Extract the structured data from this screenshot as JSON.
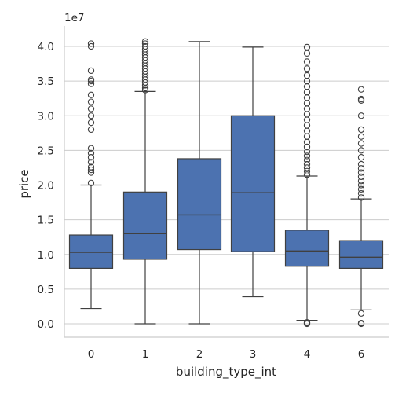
{
  "chart_data": {
    "type": "box",
    "xlabel": "building_type_int",
    "ylabel": "price",
    "y_scale_label": "1e7",
    "y_ticks": [
      "0.0",
      "0.5",
      "1.0",
      "1.5",
      "2.0",
      "2.5",
      "3.0",
      "3.5",
      "4.0"
    ],
    "y_tick_values": [
      0,
      0.5,
      1.0,
      1.5,
      2.0,
      2.5,
      3.0,
      3.5,
      4.0
    ],
    "ylim": [
      -0.2,
      4.3
    ],
    "grid": "horizontal",
    "box_color": "#4c72b0",
    "line_color": "#404040",
    "categories": [
      "0",
      "1",
      "2",
      "3",
      "4",
      "6"
    ],
    "boxes": [
      {
        "category": "0",
        "whislo": 0.22,
        "q1": 0.8,
        "median": 1.03,
        "q3": 1.28,
        "whishi": 2.0,
        "fliers": [
          2.03,
          2.18,
          2.22,
          2.26,
          2.33,
          2.4,
          2.46,
          2.53,
          2.8,
          2.9,
          3.0,
          3.1,
          3.2,
          3.3,
          3.46,
          3.5,
          3.52,
          3.65,
          4.0,
          4.04
        ]
      },
      {
        "category": "1",
        "whislo": 0.0,
        "q1": 0.93,
        "median": 1.3,
        "q3": 1.9,
        "whishi": 3.35,
        "fliers": [
          3.37,
          3.4,
          3.44,
          3.48,
          3.52,
          3.56,
          3.6,
          3.64,
          3.68,
          3.72,
          3.76,
          3.8,
          3.84,
          3.88,
          3.92,
          3.96,
          4.0,
          4.04,
          4.07
        ]
      },
      {
        "category": "2",
        "whislo": 0.0,
        "q1": 1.07,
        "median": 1.57,
        "q3": 2.38,
        "whishi": 4.07,
        "fliers": []
      },
      {
        "category": "3",
        "whislo": 0.39,
        "q1": 1.04,
        "median": 1.89,
        "q3": 3.0,
        "whishi": 3.99,
        "fliers": []
      },
      {
        "category": "4",
        "whislo": 0.05,
        "q1": 0.83,
        "median": 1.05,
        "q3": 1.35,
        "whishi": 2.13,
        "fliers": [
          0.0,
          0.01,
          0.02,
          2.15,
          2.2,
          2.25,
          2.3,
          2.36,
          2.42,
          2.48,
          2.55,
          2.62,
          2.7,
          2.78,
          2.86,
          2.94,
          3.02,
          3.1,
          3.18,
          3.26,
          3.34,
          3.42,
          3.5,
          3.58,
          3.68,
          3.78,
          3.9,
          3.99
        ]
      },
      {
        "category": "6",
        "whislo": 0.2,
        "q1": 0.8,
        "median": 0.96,
        "q3": 1.2,
        "whishi": 1.8,
        "fliers": [
          0.0,
          0.01,
          0.15,
          1.82,
          1.88,
          1.94,
          2.0,
          2.06,
          2.12,
          2.18,
          2.24,
          2.3,
          2.4,
          2.5,
          2.6,
          2.7,
          2.8,
          3.0,
          3.22,
          3.24,
          3.38
        ]
      }
    ]
  }
}
